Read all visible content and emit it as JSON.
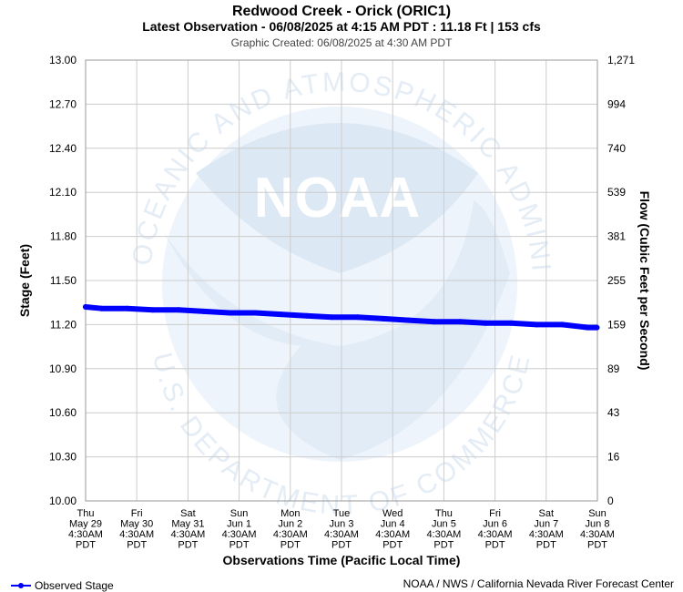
{
  "header": {
    "title": "Redwood Creek - Orick (ORIC1)",
    "subtitle": "Latest Observation - 06/08/2025 at 4:15 AM PDT : 11.18 Ft | 153 cfs",
    "created": "Graphic Created: 06/08/2025 at 4:30 AM PDT"
  },
  "footer": {
    "legend_label": "Observed Stage",
    "credit": "NOAA / NWS / California Nevada River Forecast Center"
  },
  "watermark": {
    "logo_text": "NOAA",
    "ring_top": "NATIONAL OCEANIC AND ATMOSPHERIC ADMINISTRATION",
    "ring_bottom": "U.S. DEPARTMENT OF COMMERCE"
  },
  "colors": {
    "series": "#0000ff",
    "grid": "#cccccc",
    "watermark": "#dce8f4"
  },
  "chart_data": {
    "type": "line",
    "xlabel": "Observations Time (Pacific Local Time)",
    "ylabel": "Stage (Feet)",
    "y2label": "Flow (Cubic Feet per Second)",
    "ylim": [
      10.0,
      13.0
    ],
    "yticks": [
      "13.00",
      "12.70",
      "12.40",
      "12.10",
      "11.80",
      "11.50",
      "11.20",
      "10.90",
      "10.60",
      "10.30",
      "10.00"
    ],
    "y2ticks": [
      "1,271",
      "994",
      "740",
      "539",
      "381",
      "255",
      "159",
      "89",
      "43",
      "16",
      "0"
    ],
    "x_ticks": [
      [
        "Thu",
        "May 29",
        "4:30AM",
        "PDT"
      ],
      [
        "Fri",
        "May 30",
        "4:30AM",
        "PDT"
      ],
      [
        "Sat",
        "May 31",
        "4:30AM",
        "PDT"
      ],
      [
        "Sun",
        "Jun 1",
        "4:30AM",
        "PDT"
      ],
      [
        "Mon",
        "Jun 2",
        "4:30AM",
        "PDT"
      ],
      [
        "Tue",
        "Jun 3",
        "4:30AM",
        "PDT"
      ],
      [
        "Wed",
        "Jun 4",
        "4:30AM",
        "PDT"
      ],
      [
        "Thu",
        "Jun 5",
        "4:30AM",
        "PDT"
      ],
      [
        "Fri",
        "Jun 6",
        "4:30AM",
        "PDT"
      ],
      [
        "Sat",
        "Jun 7",
        "4:30AM",
        "PDT"
      ],
      [
        "Sun",
        "Jun 8",
        "4:30AM",
        "PDT"
      ]
    ],
    "grid": true,
    "legend_position": "bottom-left",
    "series": [
      {
        "name": "Observed Stage",
        "x": [
          "2025-05-29 04:30",
          "2025-05-29 12:00",
          "2025-05-30 00:00",
          "2025-05-30 12:00",
          "2025-05-31 00:00",
          "2025-05-31 12:00",
          "2025-06-01 00:00",
          "2025-06-01 12:00",
          "2025-06-02 00:00",
          "2025-06-02 12:00",
          "2025-06-03 00:00",
          "2025-06-03 12:00",
          "2025-06-04 00:00",
          "2025-06-04 12:00",
          "2025-06-05 00:00",
          "2025-06-05 12:00",
          "2025-06-06 00:00",
          "2025-06-06 12:00",
          "2025-06-07 00:00",
          "2025-06-07 12:00",
          "2025-06-08 00:00",
          "2025-06-08 04:15"
        ],
        "y": [
          11.32,
          11.31,
          11.31,
          11.3,
          11.3,
          11.29,
          11.28,
          11.28,
          11.27,
          11.26,
          11.25,
          11.25,
          11.24,
          11.23,
          11.22,
          11.22,
          11.21,
          11.21,
          11.2,
          11.2,
          11.18,
          11.18
        ]
      }
    ]
  }
}
